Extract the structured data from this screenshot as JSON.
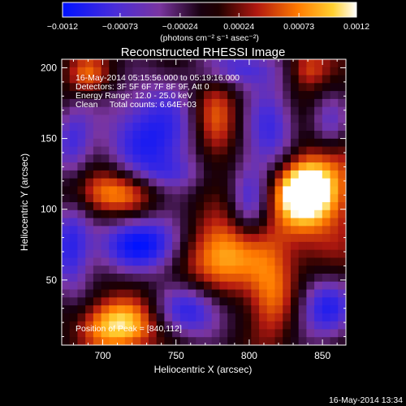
{
  "chart_data": {
    "type": "heatmap",
    "title": "Reconstructed RHESSI Image",
    "xlabel": "Heliocentric X (arcsec)",
    "ylabel": "Heliocentric Y (arcsec)",
    "xlim": [
      672,
      866
    ],
    "ylim": [
      4,
      206
    ],
    "xticks": [
      700,
      750,
      800,
      850
    ],
    "yticks": [
      50,
      100,
      150,
      200
    ],
    "colorbar": {
      "range": [
        -0.0012,
        0.0012
      ],
      "ticks": [
        -0.0012,
        -0.00073,
        -0.00024,
        0.00024,
        0.00073,
        0.0012
      ],
      "tick_labels": [
        "−0.0012",
        "−0.00073",
        "−0.00024",
        "0.00024",
        "0.00073",
        "0.0012"
      ],
      "unit_text": "(photons cm⁻² s⁻¹ asec⁻²)",
      "colormap": "blue-purple-black-red-orange-yellow-white"
    },
    "annotations": [
      "16-May-2014 05:15:56.000 to 05:19:16.000",
      "Detectors: 3F 5F 6F 7F 8F 9F, Att 0",
      "Energy Range: 12.0 - 25.0 keV",
      "Clean     Total counts: 6.64E+03"
    ],
    "peak_label": "Position of Peak = [840,112]",
    "blobs": [
      {
        "x": 838,
        "y": 113,
        "sx": 14,
        "sy": 14,
        "amp": 1.1
      },
      {
        "x": 838,
        "y": 112,
        "sx": 28,
        "sy": 34,
        "amp": 0.55
      },
      {
        "x": 712,
        "y": 18,
        "sx": 18,
        "sy": 13,
        "amp": 0.95
      },
      {
        "x": 708,
        "y": 112,
        "sx": 22,
        "sy": 12,
        "amp": 0.8
      },
      {
        "x": 780,
        "y": 68,
        "sx": 20,
        "sy": 18,
        "amp": 0.85
      },
      {
        "x": 776,
        "y": 160,
        "sx": 11,
        "sy": 22,
        "amp": 0.6
      },
      {
        "x": 815,
        "y": 38,
        "sx": 11,
        "sy": 20,
        "amp": 0.55
      },
      {
        "x": 690,
        "y": 195,
        "sx": 10,
        "sy": 10,
        "amp": 0.55
      },
      {
        "x": 840,
        "y": 200,
        "sx": 10,
        "sy": 10,
        "amp": 0.5
      },
      {
        "x": 745,
        "y": 125,
        "sx": 18,
        "sy": 8,
        "amp": -0.25
      },
      {
        "x": 735,
        "y": 150,
        "sx": 24,
        "sy": 28,
        "amp": -0.85
      },
      {
        "x": 728,
        "y": 75,
        "sx": 24,
        "sy": 14,
        "amp": -0.95
      },
      {
        "x": 815,
        "y": 150,
        "sx": 14,
        "sy": 26,
        "amp": -0.85
      },
      {
        "x": 800,
        "y": 105,
        "sx": 10,
        "sy": 20,
        "amp": -0.65
      },
      {
        "x": 760,
        "y": 28,
        "sx": 18,
        "sy": 14,
        "amp": -0.75
      },
      {
        "x": 852,
        "y": 30,
        "sx": 14,
        "sy": 16,
        "amp": -0.8
      },
      {
        "x": 678,
        "y": 75,
        "sx": 10,
        "sy": 30,
        "amp": -0.65
      },
      {
        "x": 795,
        "y": 200,
        "sx": 20,
        "sy": 10,
        "amp": -0.6
      },
      {
        "x": 855,
        "y": 160,
        "sx": 10,
        "sy": 15,
        "amp": -0.6
      },
      {
        "x": 680,
        "y": 150,
        "sx": 10,
        "sy": 18,
        "amp": -0.55
      }
    ]
  },
  "footer": {
    "date_stamp": "16-May-2014 13:34"
  },
  "colors": {
    "background": "#000000",
    "foreground": "#ffffff"
  }
}
